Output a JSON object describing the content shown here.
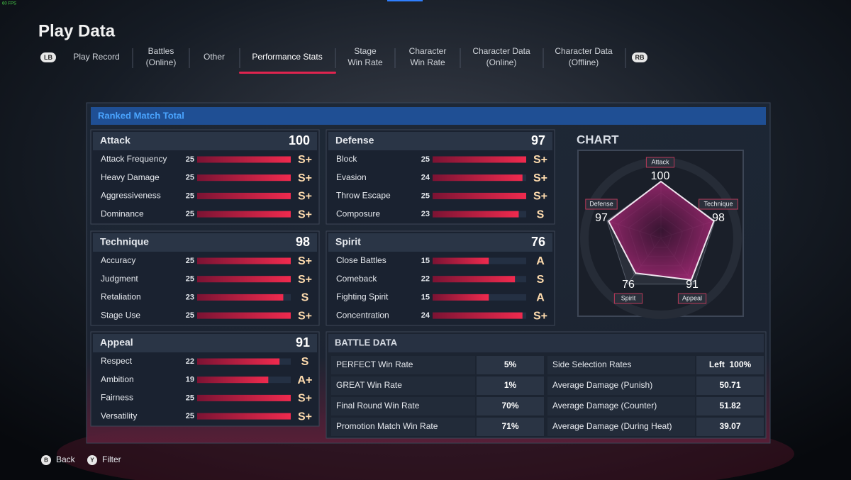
{
  "overlay": {
    "fps": "60 FPS"
  },
  "header": {
    "title": "Play Data",
    "buttons": {
      "left": "LB",
      "right": "RB"
    }
  },
  "tabs": [
    {
      "lines": [
        "Play Record"
      ]
    },
    {
      "lines": [
        "Battles",
        "(Online)"
      ]
    },
    {
      "lines": [
        "Other"
      ]
    },
    {
      "lines": [
        "Performance Stats"
      ],
      "active": true
    },
    {
      "lines": [
        "Stage",
        "Win Rate"
      ]
    },
    {
      "lines": [
        "Character",
        "Win Rate"
      ]
    },
    {
      "lines": [
        "Character Data",
        "(Online)"
      ]
    },
    {
      "lines": [
        "Character Data",
        "(Offline)"
      ]
    }
  ],
  "panel": {
    "title": "Ranked Match Total",
    "groups": [
      {
        "name": "Attack",
        "total": 100,
        "items": [
          {
            "label": "Attack Frequency",
            "value": 25,
            "grade": "S+"
          },
          {
            "label": "Heavy Damage",
            "value": 25,
            "grade": "S+"
          },
          {
            "label": "Aggressiveness",
            "value": 25,
            "grade": "S+"
          },
          {
            "label": "Dominance",
            "value": 25,
            "grade": "S+"
          }
        ]
      },
      {
        "name": "Defense",
        "total": 97,
        "items": [
          {
            "label": "Block",
            "value": 25,
            "grade": "S+"
          },
          {
            "label": "Evasion",
            "value": 24,
            "grade": "S+"
          },
          {
            "label": "Throw Escape",
            "value": 25,
            "grade": "S+"
          },
          {
            "label": "Composure",
            "value": 23,
            "grade": "S"
          }
        ]
      },
      {
        "name": "Technique",
        "total": 98,
        "items": [
          {
            "label": "Accuracy",
            "value": 25,
            "grade": "S+"
          },
          {
            "label": "Judgment",
            "value": 25,
            "grade": "S+"
          },
          {
            "label": "Retaliation",
            "value": 23,
            "grade": "S"
          },
          {
            "label": "Stage Use",
            "value": 25,
            "grade": "S+"
          }
        ]
      },
      {
        "name": "Spirit",
        "total": 76,
        "items": [
          {
            "label": "Close Battles",
            "value": 15,
            "grade": "A"
          },
          {
            "label": "Comeback",
            "value": 22,
            "grade": "S"
          },
          {
            "label": "Fighting Spirit",
            "value": 15,
            "grade": "A"
          },
          {
            "label": "Concentration",
            "value": 24,
            "grade": "S+"
          }
        ]
      },
      {
        "name": "Appeal",
        "total": 91,
        "items": [
          {
            "label": "Respect",
            "value": 22,
            "grade": "S"
          },
          {
            "label": "Ambition",
            "value": 19,
            "grade": "A+"
          },
          {
            "label": "Fairness",
            "value": 25,
            "grade": "S+"
          },
          {
            "label": "Versatility",
            "value": 25,
            "grade": "S+"
          }
        ]
      }
    ]
  },
  "chart": {
    "title": "CHART",
    "axes": [
      {
        "label": "Attack",
        "value": 100
      },
      {
        "label": "Technique",
        "value": 98
      },
      {
        "label": "Appeal",
        "value": 91
      },
      {
        "label": "Spirit",
        "value": 76
      },
      {
        "label": "Defense",
        "value": 97
      }
    ]
  },
  "battle_data": {
    "title": "BATTLE DATA",
    "left": [
      [
        "PERFECT Win Rate",
        "5%"
      ],
      [
        "GREAT Win Rate",
        "1%"
      ],
      [
        "Final Round Win Rate",
        "70%"
      ],
      [
        "Promotion Match Win Rate",
        "71%"
      ]
    ],
    "right": [
      [
        "Side Selection Rates",
        "Left  100%"
      ],
      [
        "Average Damage (Punish)",
        "50.71"
      ],
      [
        "Average Damage (Counter)",
        "51.82"
      ],
      [
        "Average Damage (During Heat)",
        "39.07"
      ]
    ]
  },
  "footer": [
    {
      "button": "B",
      "label": "Back"
    },
    {
      "button": "Y",
      "label": "Filter"
    }
  ]
}
